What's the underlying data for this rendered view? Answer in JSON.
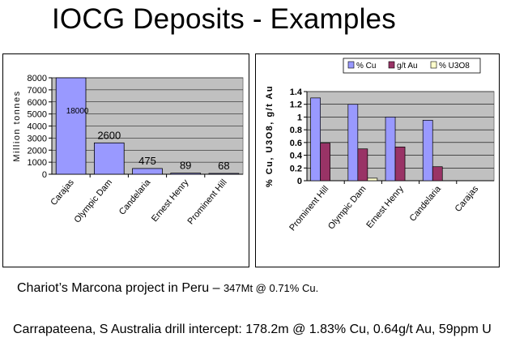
{
  "title": "IOCG Deposits - Examples",
  "chart_data": [
    {
      "type": "bar",
      "categories": [
        "Carajas",
        "Olympic Dam",
        "Candelaria",
        "Ernest Henry",
        "Prominent Hill"
      ],
      "category_labels": [
        "Carajas",
        "Olympic Dam",
        "Candelaria",
        "Ernest Henry",
        "Prominent Hill"
      ],
      "values": [
        18000,
        2600,
        475,
        89,
        68
      ],
      "data_labels": [
        "18000",
        "2600",
        "475",
        "89",
        "68"
      ],
      "ylabel": "Million tonnes",
      "ylim": [
        0,
        8000
      ],
      "yticks": [
        "0",
        "1000",
        "2000",
        "3000",
        "4000",
        "5000",
        "6000",
        "7000",
        "8000"
      ],
      "grid": true,
      "bar_color": "#9999ff",
      "plot_bg": "#c0c0c0"
    },
    {
      "type": "bar",
      "categories": [
        "Prominent Hill",
        "Olympic Dam",
        "Ernest Henry",
        "Candelaria",
        "Carajas"
      ],
      "category_labels": [
        "Prominent Hill",
        "Olympic Dam",
        "Ernest Henry",
        "Candelaria",
        "Carajas"
      ],
      "series": [
        {
          "name": "% Cu",
          "values": [
            1.3,
            1.2,
            1.0,
            0.95,
            0
          ],
          "color": "#9999ff"
        },
        {
          "name": "g/t Au",
          "values": [
            0.59,
            0.5,
            0.53,
            0.22,
            0
          ],
          "color": "#993366"
        },
        {
          "name": "% U3O8",
          "values": [
            0,
            0.04,
            0,
            0,
            0
          ],
          "color": "#ffffcc"
        }
      ],
      "ylabel": "% Cu, U3O8, g/t Au",
      "ylim": [
        0,
        1.4
      ],
      "yticks": [
        "0",
        "0.2",
        "0.4",
        "0.6",
        "0.8",
        "1",
        "1.2",
        "1.4"
      ],
      "legend_position": "top-right",
      "grid": true,
      "plot_bg": "#c0c0c0"
    }
  ],
  "captions": {
    "line1_main": "Chariot’s Marcona project in Peru – ",
    "line1_small": "347Mt @ 0.71% Cu.",
    "line2_main": "Carrapateena, S Australia drill intercept: ",
    "line2_rest": "178.2m @ 1.83% Cu, 0.64g/t Au, 59ppm U"
  }
}
